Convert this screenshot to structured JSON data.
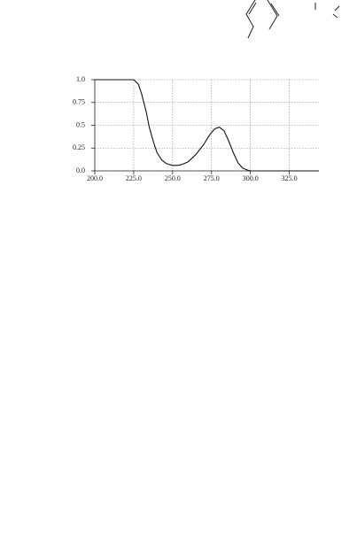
{
  "chart_data": {
    "type": "line",
    "x": [
      200,
      205,
      210,
      215,
      220,
      225,
      228,
      230,
      233,
      235,
      238,
      240,
      243,
      246,
      250,
      253,
      256,
      260,
      265,
      270,
      274,
      277,
      280,
      283,
      286,
      289,
      292,
      295,
      298,
      300,
      320,
      344
    ],
    "values": [
      1.0,
      1.0,
      1.0,
      1.0,
      1.0,
      1.0,
      0.95,
      0.85,
      0.65,
      0.48,
      0.3,
      0.2,
      0.12,
      0.08,
      0.06,
      0.06,
      0.07,
      0.1,
      0.18,
      0.29,
      0.4,
      0.46,
      0.48,
      0.44,
      0.33,
      0.2,
      0.09,
      0.03,
      0.01,
      0.0,
      0.0,
      0.0
    ],
    "color": "#111111",
    "xlim": [
      200,
      344
    ],
    "ylim": [
      0,
      1
    ],
    "xticks": [
      {
        "value": 200,
        "label": "200.0"
      },
      {
        "value": 225,
        "label": "225.0"
      },
      {
        "value": 250,
        "label": "250.0"
      },
      {
        "value": 275,
        "label": "275.0"
      },
      {
        "value": 300,
        "label": "300.0"
      },
      {
        "value": 325,
        "label": "325.0"
      }
    ],
    "yticks": [
      {
        "value": 0,
        "label": "0.0"
      },
      0.25,
      0.5,
      0.75,
      {
        "value": 1,
        "label": "1.0"
      }
    ],
    "grid": true
  }
}
